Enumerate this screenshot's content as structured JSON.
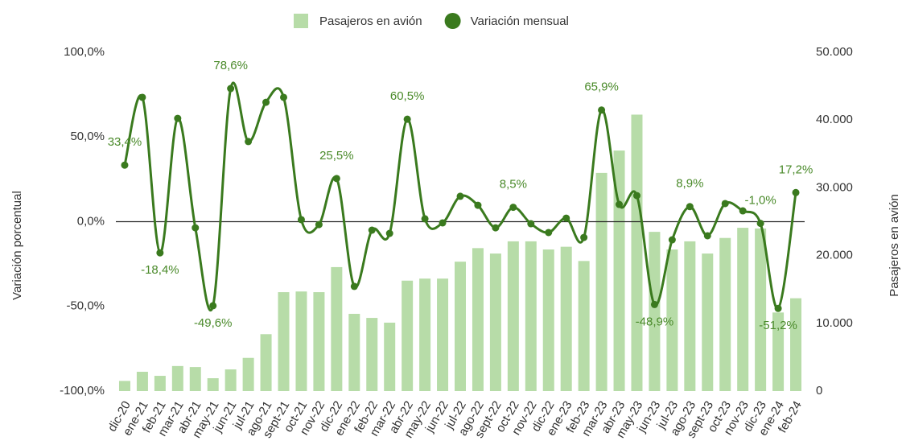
{
  "chart_data": {
    "type": "bar_line",
    "categories": [
      "dic-20",
      "ene-21",
      "feb-21",
      "mar-21",
      "abr-21",
      "may-21",
      "jun-21",
      "jul-21",
      "ago-21",
      "sept-21",
      "oct-21",
      "nov-22",
      "dic-22",
      "ene-22",
      "feb-22",
      "mar-22",
      "abr-22",
      "may-22",
      "jun-22",
      "jul-22",
      "ago-22",
      "sept-22",
      "oct-22",
      "nov-22",
      "dic-22",
      "ene-23",
      "feb-23",
      "mar-23",
      "abr-23",
      "may-23",
      "jun-23",
      "jul-23",
      "ago-23",
      "sept-23",
      "oct-23",
      "nov-23",
      "dic-23",
      "ene-24",
      "feb-24"
    ],
    "series": [
      {
        "name": "Pasajeros en avión",
        "type": "bar",
        "axis": "y2",
        "color": "#b7dca8",
        "values": [
          1500,
          2850,
          2250,
          3700,
          3550,
          1900,
          3200,
          4900,
          8400,
          14600,
          14700,
          14600,
          18300,
          11400,
          10800,
          10100,
          16300,
          16600,
          16600,
          19100,
          21100,
          20300,
          22100,
          22100,
          20900,
          21300,
          19200,
          32200,
          35500,
          40800,
          23500,
          20900,
          22100,
          20300,
          22600,
          24100,
          24000,
          11600,
          13700
        ]
      },
      {
        "name": "Variación mensual",
        "type": "line",
        "axis": "y",
        "color": "#3a7a1e",
        "values": [
          33.4,
          73.4,
          -18.4,
          61.0,
          -3.6,
          -49.6,
          78.6,
          47.3,
          70.5,
          73.4,
          1.2,
          -1.7,
          25.5,
          -38.2,
          -5.0,
          -6.9,
          60.5,
          1.7,
          -0.7,
          15.0,
          9.7,
          -3.6,
          8.5,
          -1.2,
          -6.4,
          2.1,
          -9.3,
          65.9,
          10.2,
          15.4,
          -48.9,
          -10.7,
          8.9,
          -8.3,
          10.7,
          6.4,
          -1.0,
          -51.2,
          17.2
        ],
        "value_labels": [
          "33,4%",
          null,
          "-18,4%",
          null,
          null,
          "-49,6%",
          "78,6%",
          null,
          null,
          null,
          null,
          null,
          "25,5%",
          null,
          null,
          null,
          "60,5%",
          null,
          null,
          null,
          null,
          null,
          "8,5%",
          null,
          null,
          null,
          null,
          "65,9%",
          null,
          null,
          "-48,9%",
          null,
          "8,9%",
          null,
          null,
          null,
          "-1,0%",
          "-51,2%",
          "17,2%"
        ]
      }
    ],
    "ylabel": "Variación porcentual",
    "y2label": "Pasajeros en avión",
    "ylim": [
      -100,
      100
    ],
    "yticks": [
      {
        "value": -100,
        "label": "-100,0%"
      },
      {
        "value": -50,
        "label": "-50,0%"
      },
      {
        "value": 0,
        "label": "0,0%"
      },
      {
        "value": 50,
        "label": "50,0%"
      },
      {
        "value": 100,
        "label": "100,0%"
      }
    ],
    "y2lim": [
      0,
      50000
    ],
    "y2ticks": [
      0,
      {
        "value": 10000,
        "label": "10.000"
      },
      {
        "value": 20000,
        "label": "20.000"
      },
      {
        "value": 30000,
        "label": "30.000"
      },
      {
        "value": 40000,
        "label": "40.000"
      },
      {
        "value": 50000,
        "label": "50.000"
      }
    ],
    "legend": "top"
  }
}
